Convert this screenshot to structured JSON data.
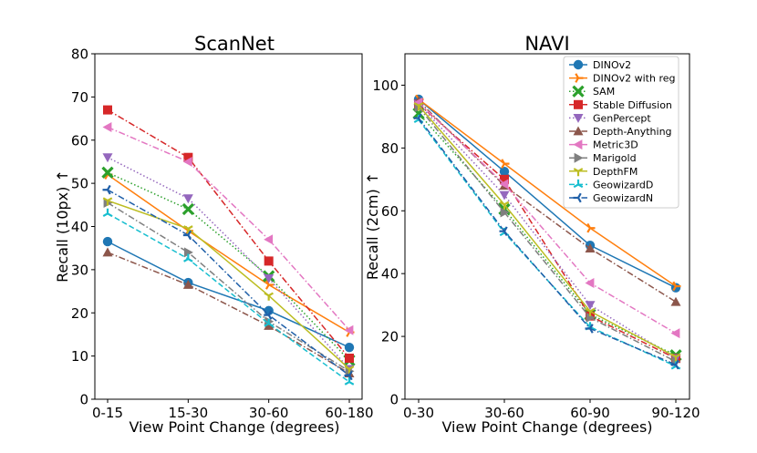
{
  "chart_data": [
    {
      "type": "line",
      "title": "ScanNet",
      "xlabel": "View Point Change (degrees)",
      "ylabel": "Recall (10px) ↑",
      "categories": [
        "0-15",
        "15-30",
        "30-60",
        "60-180"
      ],
      "ylim": [
        0,
        80
      ],
      "yticks": [
        0,
        10,
        20,
        30,
        40,
        50,
        60,
        70,
        80
      ],
      "grid": false,
      "series": [
        {
          "name": "DINOv2",
          "values": [
            36.5,
            27,
            20.5,
            12
          ]
        },
        {
          "name": "DINOv2 with reg",
          "values": [
            52,
            39,
            26.5,
            15.5
          ]
        },
        {
          "name": "SAM",
          "values": [
            52.5,
            44,
            28.5,
            9
          ]
        },
        {
          "name": "Stable Diffusion",
          "values": [
            67,
            56,
            32,
            9.5
          ]
        },
        {
          "name": "GenPercept",
          "values": [
            56,
            46.5,
            28,
            7
          ]
        },
        {
          "name": "Depth-Anything",
          "values": [
            34,
            26.5,
            17,
            6
          ]
        },
        {
          "name": "Metric3D",
          "values": [
            63,
            55,
            37,
            16
          ]
        },
        {
          "name": "Marigold",
          "values": [
            45.5,
            34,
            18,
            6.5
          ]
        },
        {
          "name": "DepthFM",
          "values": [
            46,
            39.5,
            24,
            7
          ]
        },
        {
          "name": "GeowizardD",
          "values": [
            43,
            32.5,
            17.5,
            4
          ]
        },
        {
          "name": "GeowizardN",
          "values": [
            48.5,
            38,
            19.5,
            5.5
          ]
        }
      ]
    },
    {
      "type": "line",
      "title": "NAVI",
      "xlabel": "View Point Change (degrees)",
      "ylabel": "Recall (2cm) ↑",
      "categories": [
        "0-30",
        "30-60",
        "60-90",
        "90-120"
      ],
      "ylim": [
        0,
        110
      ],
      "yticks": [
        0,
        20,
        40,
        60,
        80,
        100
      ],
      "grid": false,
      "series": [
        {
          "name": "DINOv2",
          "values": [
            95.5,
            72.5,
            49,
            35.5
          ]
        },
        {
          "name": "DINOv2 with reg",
          "values": [
            95.5,
            75,
            54.5,
            36
          ]
        },
        {
          "name": "SAM",
          "values": [
            91,
            60.5,
            27,
            14
          ]
        },
        {
          "name": "Stable Diffusion",
          "values": [
            94,
            70,
            26.5,
            13
          ]
        },
        {
          "name": "GenPercept",
          "values": [
            94,
            65,
            30,
            13
          ]
        },
        {
          "name": "Depth-Anything",
          "values": [
            95,
            68,
            48,
            31
          ]
        },
        {
          "name": "Metric3D",
          "values": [
            94.5,
            68.5,
            37,
            21
          ]
        },
        {
          "name": "Marigold",
          "values": [
            93,
            59.5,
            26,
            12
          ]
        },
        {
          "name": "DepthFM",
          "values": [
            93.5,
            62,
            28,
            13.5
          ]
        },
        {
          "name": "GeowizardD",
          "values": [
            89,
            53,
            23,
            10.5
          ]
        },
        {
          "name": "GeowizardN",
          "values": [
            89.5,
            53.5,
            22.5,
            11
          ]
        }
      ]
    }
  ],
  "series_styles": [
    {
      "color": "#1f77b4",
      "marker": "circle",
      "dash": "solid"
    },
    {
      "color": "#ff7f0e",
      "marker": "tri-right",
      "dash": "solid"
    },
    {
      "color": "#2ca02c",
      "marker": "x",
      "dash": "dotted"
    },
    {
      "color": "#d62728",
      "marker": "square",
      "dash": "dashdot"
    },
    {
      "color": "#9467bd",
      "marker": "triangle-down",
      "dash": "dotted"
    },
    {
      "color": "#8c564b",
      "marker": "triangle-up",
      "dash": "dashdot"
    },
    {
      "color": "#e377c2",
      "marker": "triangle-left",
      "dash": "dashdot"
    },
    {
      "color": "#7f7f7f",
      "marker": "triangle-right",
      "dash": "dashdot"
    },
    {
      "color": "#bcbd22",
      "marker": "tri-down",
      "dash": "solid"
    },
    {
      "color": "#17becf",
      "marker": "tri-up",
      "dash": "dashed"
    },
    {
      "color": "#1f5fa8",
      "marker": "tri-left",
      "dash": "dashdot"
    }
  ]
}
